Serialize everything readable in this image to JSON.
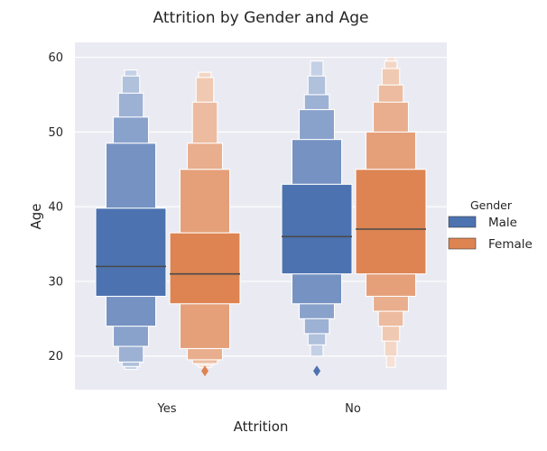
{
  "chart_data": {
    "type": "boxen",
    "title": "Attrition by Gender and Age",
    "xlabel": "Attrition",
    "ylabel": "Age",
    "categories": [
      "Yes",
      "No"
    ],
    "ylim": [
      15.5,
      62
    ],
    "yticks": [
      20,
      30,
      40,
      50,
      60
    ],
    "grid": true,
    "legend": {
      "title": "Gender",
      "placement": "right"
    },
    "series": [
      {
        "name": "Male",
        "color": "#4c72b0",
        "groups": [
          {
            "category": "Yes",
            "median": 32,
            "levels": [
              [
                28,
                39.8
              ],
              [
                24,
                48.5
              ],
              [
                21.3,
                52
              ],
              [
                19.2,
                55.2
              ],
              [
                18.6,
                57.5
              ],
              [
                18.2,
                58.3
              ]
            ],
            "outliers": []
          },
          {
            "category": "No",
            "median": 36,
            "levels": [
              [
                31,
                43
              ],
              [
                27,
                49
              ],
              [
                25,
                53
              ],
              [
                23,
                55
              ],
              [
                21.5,
                57.5
              ],
              [
                20,
                59.5
              ]
            ],
            "outliers": [
              18
            ]
          }
        ]
      },
      {
        "name": "Female",
        "color": "#dd8452",
        "groups": [
          {
            "category": "Yes",
            "median": 31,
            "levels": [
              [
                27,
                36.5
              ],
              [
                21,
                45
              ],
              [
                19.5,
                48.5
              ],
              [
                19,
                54
              ],
              [
                18.8,
                57.3
              ],
              [
                18.5,
                58
              ]
            ],
            "outliers": [
              18
            ]
          },
          {
            "category": "No",
            "median": 37,
            "levels": [
              [
                31,
                45
              ],
              [
                28,
                50
              ],
              [
                26,
                54
              ],
              [
                24,
                56.3
              ],
              [
                22,
                58.5
              ],
              [
                20,
                59.5
              ],
              [
                18.5,
                60
              ]
            ],
            "outliers": []
          }
        ]
      }
    ]
  }
}
